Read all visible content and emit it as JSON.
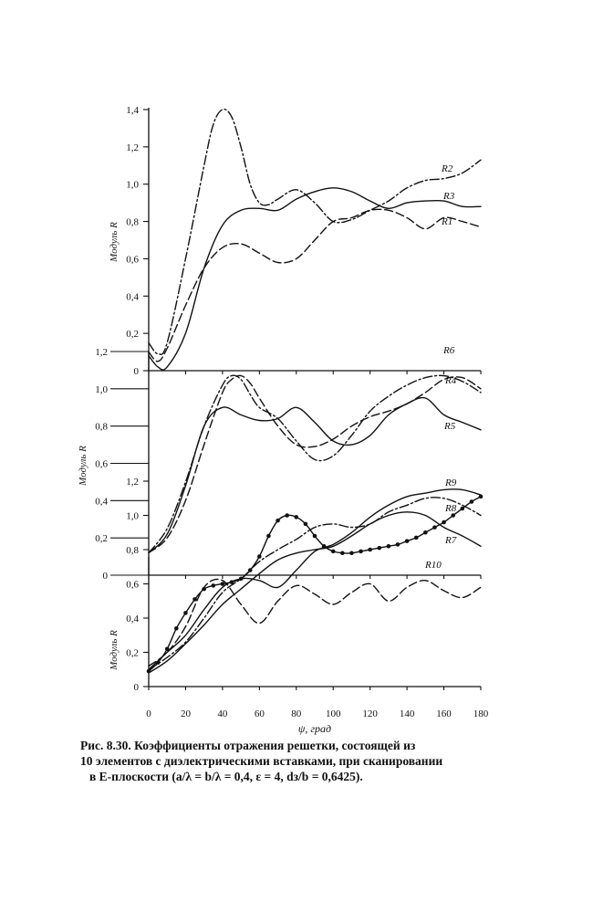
{
  "chart_data": [
    {
      "type": "line",
      "ylabel": "Модуль R",
      "xlim": [
        0,
        180
      ],
      "ylim": [
        0,
        1.4
      ],
      "y_ticks": [
        "0",
        "0,2",
        "0,4",
        "0,6",
        "0,8",
        "1,0",
        "1,2",
        "1,4"
      ],
      "series": [
        {
          "name": "R1",
          "style": "long-dash",
          "x": [
            0,
            5,
            10,
            20,
            30,
            40,
            50,
            60,
            70,
            80,
            90,
            100,
            110,
            120,
            130,
            140,
            150,
            160,
            170,
            180
          ],
          "y": [
            0.1,
            0.05,
            0.12,
            0.35,
            0.55,
            0.66,
            0.68,
            0.63,
            0.58,
            0.6,
            0.7,
            0.8,
            0.82,
            0.86,
            0.86,
            0.82,
            0.76,
            0.82,
            0.8,
            0.77
          ]
        },
        {
          "name": "R2",
          "style": "dash-dot",
          "x": [
            0,
            5,
            10,
            20,
            30,
            35,
            40,
            45,
            50,
            55,
            60,
            65,
            70,
            80,
            90,
            100,
            110,
            120,
            130,
            140,
            150,
            160,
            170,
            180
          ],
          "y": [
            0.15,
            0.09,
            0.15,
            0.6,
            1.1,
            1.32,
            1.4,
            1.36,
            1.2,
            1.0,
            0.9,
            0.89,
            0.92,
            0.97,
            0.9,
            0.8,
            0.81,
            0.86,
            0.91,
            0.98,
            1.02,
            1.03,
            1.06,
            1.13
          ]
        },
        {
          "name": "R3",
          "style": "solid",
          "x": [
            0,
            5,
            10,
            20,
            30,
            40,
            50,
            60,
            70,
            80,
            90,
            100,
            110,
            120,
            130,
            140,
            150,
            160,
            170,
            180
          ],
          "y": [
            0.08,
            0.02,
            0.02,
            0.2,
            0.55,
            0.78,
            0.86,
            0.87,
            0.86,
            0.92,
            0.96,
            0.98,
            0.96,
            0.91,
            0.87,
            0.9,
            0.91,
            0.91,
            0.88,
            0.88
          ]
        }
      ]
    },
    {
      "type": "line",
      "ylabel": "Модуль R",
      "xlim": [
        0,
        180
      ],
      "ylim": [
        0,
        1.2
      ],
      "y_ticks": [
        "0",
        "0,2",
        "0,4",
        "0,6",
        "0,8",
        "1,0",
        "1,2"
      ],
      "series": [
        {
          "name": "R4",
          "style": "dash-dot",
          "x": [
            0,
            10,
            20,
            30,
            40,
            45,
            50,
            55,
            60,
            70,
            80,
            90,
            100,
            110,
            120,
            130,
            140,
            150,
            160,
            170,
            180
          ],
          "y": [
            0.12,
            0.25,
            0.5,
            0.8,
            1.02,
            1.07,
            1.05,
            0.97,
            0.9,
            0.84,
            0.72,
            0.62,
            0.64,
            0.75,
            0.88,
            0.96,
            1.02,
            1.06,
            1.07,
            1.04,
            0.98
          ]
        },
        {
          "name": "R5",
          "style": "solid",
          "x": [
            0,
            10,
            20,
            30,
            40,
            50,
            60,
            70,
            80,
            90,
            100,
            110,
            120,
            130,
            140,
            150,
            160,
            170,
            180
          ],
          "y": [
            0.12,
            0.22,
            0.48,
            0.8,
            0.9,
            0.86,
            0.83,
            0.84,
            0.9,
            0.82,
            0.72,
            0.7,
            0.75,
            0.86,
            0.92,
            0.95,
            0.86,
            0.82,
            0.78
          ]
        },
        {
          "name": "R6",
          "style": "long-dash",
          "x": [
            0,
            10,
            20,
            30,
            40,
            45,
            50,
            55,
            60,
            70,
            80,
            90,
            100,
            110,
            120,
            130,
            140,
            150,
            160,
            170,
            180
          ],
          "y": [
            0.12,
            0.2,
            0.4,
            0.7,
            0.98,
            1.05,
            1.07,
            1.03,
            0.95,
            0.8,
            0.7,
            0.69,
            0.73,
            0.8,
            0.85,
            0.88,
            0.92,
            0.98,
            1.05,
            1.06,
            1.0
          ]
        }
      ]
    },
    {
      "type": "line",
      "ylabel": "Модуль R",
      "xlim": [
        0,
        180
      ],
      "ylim": [
        0,
        1.2
      ],
      "y_ticks": [
        "0",
        "0,2",
        "0,4",
        "0,6",
        "0,8",
        "1,0",
        "1,2"
      ],
      "xlabel": "ψ, град",
      "x_ticks": [
        "0",
        "20",
        "40",
        "60",
        "80",
        "100",
        "120",
        "140",
        "160",
        "180"
      ],
      "series": [
        {
          "name": "R7",
          "style": "solid",
          "x": [
            0,
            10,
            20,
            30,
            40,
            50,
            60,
            70,
            80,
            90,
            100,
            110,
            120,
            130,
            140,
            150,
            160,
            170,
            180
          ],
          "y": [
            0.08,
            0.15,
            0.25,
            0.36,
            0.48,
            0.57,
            0.66,
            0.74,
            0.78,
            0.8,
            0.82,
            0.88,
            0.95,
            1.0,
            1.02,
            1.0,
            0.93,
            0.88,
            0.82
          ]
        },
        {
          "name": "R8",
          "style": "dash-dot",
          "x": [
            0,
            10,
            20,
            30,
            40,
            50,
            60,
            70,
            80,
            90,
            100,
            110,
            120,
            130,
            140,
            150,
            160,
            170,
            180
          ],
          "y": [
            0.1,
            0.17,
            0.26,
            0.4,
            0.55,
            0.63,
            0.73,
            0.8,
            0.86,
            0.93,
            0.95,
            0.93,
            0.95,
            1.02,
            1.06,
            1.1,
            1.1,
            1.06,
            1.0
          ]
        },
        {
          "name": "R9",
          "style": "solid",
          "x": [
            0,
            10,
            20,
            30,
            40,
            50,
            60,
            70,
            80,
            90,
            100,
            110,
            120,
            130,
            140,
            150,
            160,
            170,
            180
          ],
          "y": [
            0.1,
            0.2,
            0.3,
            0.45,
            0.58,
            0.63,
            0.62,
            0.58,
            0.68,
            0.79,
            0.83,
            0.9,
            0.99,
            1.06,
            1.11,
            1.13,
            1.15,
            1.15,
            1.12
          ]
        },
        {
          "name": "R10",
          "style": "dot-marker",
          "x": [
            0,
            5,
            10,
            15,
            20,
            25,
            30,
            35,
            40,
            45,
            50,
            55,
            60,
            65,
            70,
            75,
            80,
            85,
            90,
            95,
            100,
            105,
            110,
            115,
            120,
            125,
            130,
            135,
            140,
            145,
            150,
            155,
            160,
            165,
            170,
            175,
            180
          ],
          "y": [
            0.09,
            0.14,
            0.22,
            0.34,
            0.43,
            0.51,
            0.57,
            0.59,
            0.6,
            0.61,
            0.63,
            0.68,
            0.76,
            0.88,
            0.97,
            1.0,
            0.99,
            0.95,
            0.88,
            0.82,
            0.79,
            0.78,
            0.78,
            0.79,
            0.8,
            0.81,
            0.82,
            0.83,
            0.85,
            0.87,
            0.9,
            0.93,
            0.96,
            1.0,
            1.04,
            1.08,
            1.11
          ]
        },
        {
          "name": "",
          "style": "long-dash",
          "x": [
            0,
            10,
            20,
            30,
            40,
            50,
            60,
            70,
            80,
            90,
            100,
            110,
            120,
            130,
            140,
            150,
            160,
            170,
            180
          ],
          "y": [
            0.12,
            0.2,
            0.35,
            0.58,
            0.62,
            0.48,
            0.37,
            0.5,
            0.59,
            0.54,
            0.48,
            0.55,
            0.6,
            0.5,
            0.58,
            0.62,
            0.56,
            0.52,
            0.58
          ]
        }
      ]
    }
  ],
  "caption": {
    "line1": "Рис. 8.30. Коэффициенты отражения решетки, состоящей из",
    "line2": "10 элементов с диэлектрическими вставками, при сканировании",
    "line3": "в E-плоскости  (a/λ = b/λ = 0,4,  ε = 4,  dз/b = 0,6425)."
  }
}
